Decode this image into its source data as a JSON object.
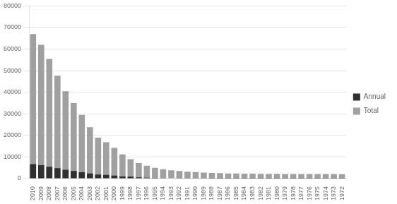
{
  "chart_data": {
    "type": "bar",
    "categories": [
      "2010",
      "2009",
      "2008",
      "2007",
      "2006",
      "2005",
      "2004",
      "2003",
      "2002",
      "2001",
      "2000",
      "1999",
      "1998",
      "1997",
      "1996",
      "1995",
      "1994",
      "1993",
      "1992",
      "1991",
      "1990",
      "1989",
      "1988",
      "1987",
      "1986",
      "1985",
      "1984",
      "1983",
      "1982",
      "1981",
      "1980",
      "1979",
      "1978",
      "1977",
      "1976",
      "1975",
      "1974",
      "1973",
      "1972"
    ],
    "series": [
      {
        "name": "Annual",
        "color": "#303030",
        "values": [
          6700,
          6200,
          5500,
          4800,
          4100,
          3500,
          2900,
          2400,
          1900,
          1700,
          1400,
          1000,
          900,
          600,
          400,
          300,
          200,
          150,
          100,
          80,
          60,
          40,
          30,
          20,
          15,
          10,
          8,
          6,
          5,
          4,
          3,
          2,
          2,
          1,
          1,
          1,
          1,
          1,
          1
        ]
      },
      {
        "name": "Total",
        "color": "#a0a0a0",
        "values": [
          67000,
          62000,
          55400,
          47700,
          40500,
          35000,
          29500,
          23800,
          19000,
          16800,
          14200,
          11200,
          9000,
          7200,
          6000,
          5000,
          4300,
          3800,
          3500,
          3200,
          3000,
          2800,
          2600,
          2500,
          2400,
          2350,
          2300,
          2250,
          2200,
          2180,
          2160,
          2140,
          2130,
          2120,
          2110,
          2100,
          2090,
          2080,
          2070
        ]
      }
    ],
    "ylim": [
      0,
      80000
    ],
    "yticks": [
      0,
      10000,
      20000,
      30000,
      40000,
      50000,
      60000,
      70000,
      80000
    ],
    "grid": true,
    "legend": "right"
  }
}
